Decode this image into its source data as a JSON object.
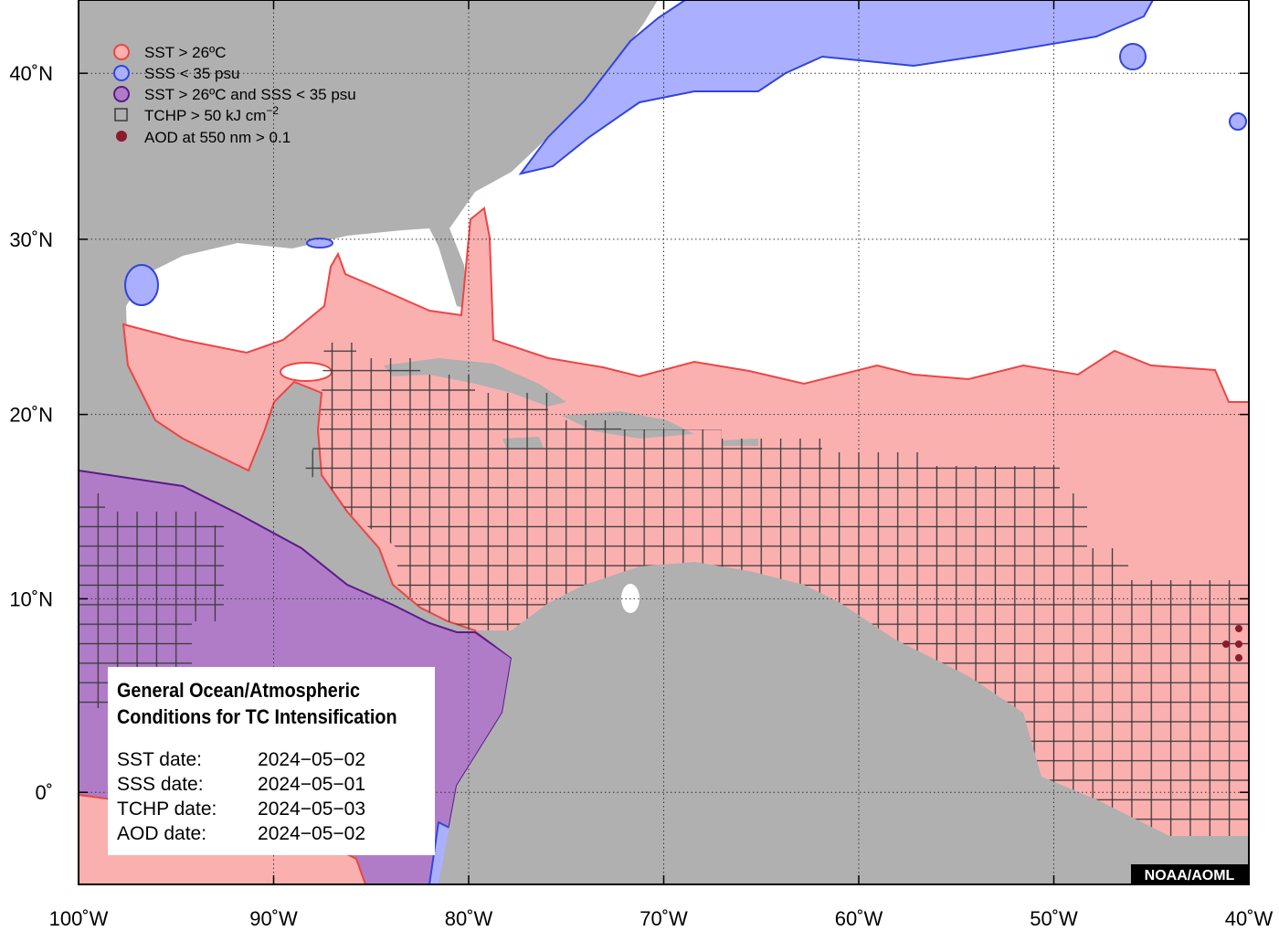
{
  "map": {
    "xlim": [
      -100,
      -40
    ],
    "ylim": [
      -4.6,
      44.6
    ],
    "xticks": [
      {
        "value": -100,
        "label": "100˚W"
      },
      {
        "value": -90,
        "label": "90˚W"
      },
      {
        "value": -80,
        "label": "80˚W"
      },
      {
        "value": -70,
        "label": "70˚W"
      },
      {
        "value": -60,
        "label": "60˚W"
      },
      {
        "value": -50,
        "label": "50˚W"
      },
      {
        "value": -40,
        "label": "40˚W"
      }
    ],
    "yticks": [
      {
        "value": 0,
        "label": "0˚"
      },
      {
        "value": 10,
        "label": "10˚N"
      },
      {
        "value": 20,
        "label": "20˚N"
      },
      {
        "value": 30,
        "label": "30˚N"
      },
      {
        "value": 40,
        "label": "40˚N"
      }
    ],
    "grid": true,
    "legend": [
      {
        "label": "SST > 26ºC"
      },
      {
        "label": "SSS < 35 psu"
      },
      {
        "label": "SST > 26ºC and SSS < 35 psu"
      },
      {
        "label": "TCHP > 50 kJ cm",
        "superscript": "−2"
      },
      {
        "label": "AOD at 550 nm > 0.1"
      }
    ],
    "info": {
      "title": [
        "General Ocean/Atmospheric",
        "Conditions for TC Intensification"
      ],
      "dates": [
        {
          "label": "SST date:",
          "value": "2024−05−02"
        },
        {
          "label": "SSS date:",
          "value": "2024−05−01"
        },
        {
          "label": "TCHP date:",
          "value": "2024−05−03"
        },
        {
          "label": "AOD date:",
          "value": "2024−05−02"
        }
      ]
    },
    "credit": "NOAA/AOML"
  }
}
